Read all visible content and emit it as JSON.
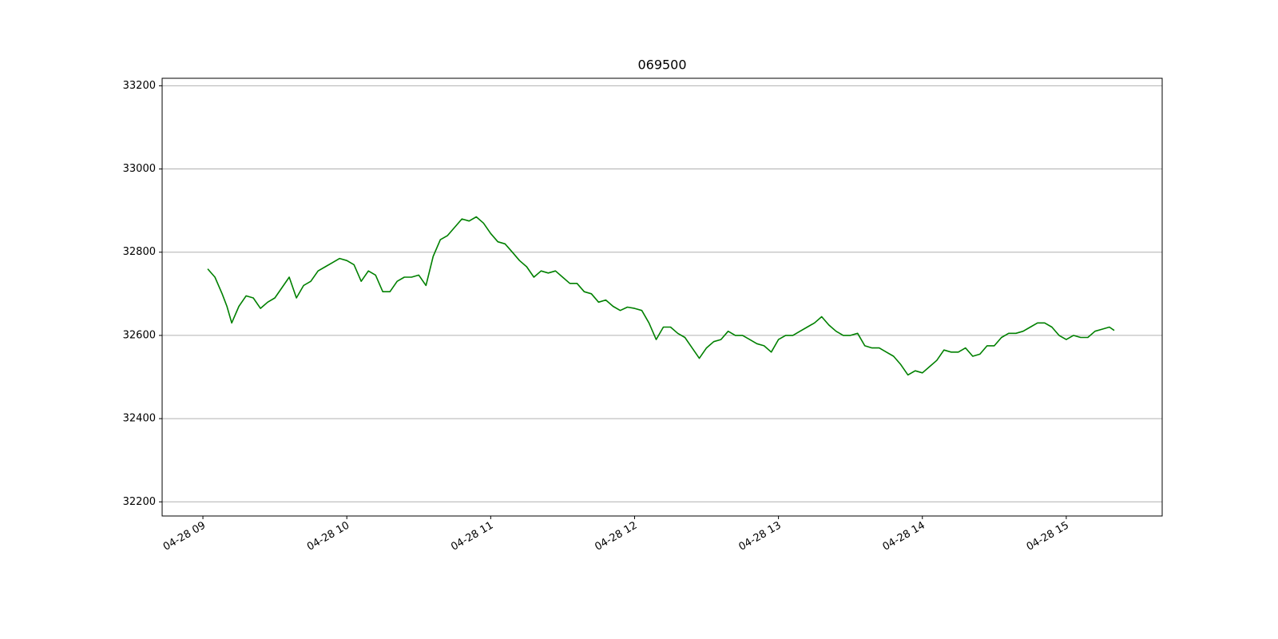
{
  "chart_data": {
    "type": "line",
    "title": "069500",
    "x": [
      "04-28 09:02",
      "04-28 09:05",
      "04-28 09:08",
      "04-28 09:10",
      "04-28 09:12",
      "04-28 09:15",
      "04-28 09:18",
      "04-28 09:21",
      "04-28 09:24",
      "04-28 09:27",
      "04-28 09:30",
      "04-28 09:33",
      "04-28 09:36",
      "04-28 09:39",
      "04-28 09:42",
      "04-28 09:45",
      "04-28 09:48",
      "04-28 09:51",
      "04-28 09:54",
      "04-28 09:57",
      "04-28 10:00",
      "04-28 10:03",
      "04-28 10:06",
      "04-28 10:09",
      "04-28 10:12",
      "04-28 10:15",
      "04-28 10:18",
      "04-28 10:21",
      "04-28 10:24",
      "04-28 10:27",
      "04-28 10:30",
      "04-28 10:33",
      "04-28 10:36",
      "04-28 10:39",
      "04-28 10:42",
      "04-28 10:45",
      "04-28 10:48",
      "04-28 10:51",
      "04-28 10:54",
      "04-28 10:57",
      "04-28 11:00",
      "04-28 11:03",
      "04-28 11:06",
      "04-28 11:09",
      "04-28 11:12",
      "04-28 11:15",
      "04-28 11:18",
      "04-28 11:21",
      "04-28 11:24",
      "04-28 11:27",
      "04-28 11:30",
      "04-28 11:33",
      "04-28 11:36",
      "04-28 11:39",
      "04-28 11:42",
      "04-28 11:45",
      "04-28 11:48",
      "04-28 11:51",
      "04-28 11:54",
      "04-28 11:57",
      "04-28 12:00",
      "04-28 12:03",
      "04-28 12:06",
      "04-28 12:09",
      "04-28 12:12",
      "04-28 12:15",
      "04-28 12:18",
      "04-28 12:21",
      "04-28 12:24",
      "04-28 12:27",
      "04-28 12:30",
      "04-28 12:33",
      "04-28 12:36",
      "04-28 12:39",
      "04-28 12:42",
      "04-28 12:45",
      "04-28 12:48",
      "04-28 12:51",
      "04-28 12:54",
      "04-28 12:57",
      "04-28 13:00",
      "04-28 13:03",
      "04-28 13:06",
      "04-28 13:09",
      "04-28 13:12",
      "04-28 13:15",
      "04-28 13:18",
      "04-28 13:21",
      "04-28 13:24",
      "04-28 13:27",
      "04-28 13:30",
      "04-28 13:33",
      "04-28 13:36",
      "04-28 13:39",
      "04-28 13:42",
      "04-28 13:45",
      "04-28 13:48",
      "04-28 13:51",
      "04-28 13:54",
      "04-28 13:57",
      "04-28 14:00",
      "04-28 14:03",
      "04-28 14:06",
      "04-28 14:09",
      "04-28 14:12",
      "04-28 14:15",
      "04-28 14:18",
      "04-28 14:21",
      "04-28 14:24",
      "04-28 14:27",
      "04-28 14:30",
      "04-28 14:33",
      "04-28 14:36",
      "04-28 14:39",
      "04-28 14:42",
      "04-28 14:45",
      "04-28 14:48",
      "04-28 14:51",
      "04-28 14:54",
      "04-28 14:57",
      "04-28 15:00",
      "04-28 15:03",
      "04-28 15:06",
      "04-28 15:09",
      "04-28 15:12",
      "04-28 15:15",
      "04-28 15:18",
      "04-28 15:20"
    ],
    "series": [
      {
        "color": "#008000",
        "values": [
          32760,
          32740,
          32700,
          32670,
          32630,
          32670,
          32695,
          32690,
          32665,
          32680,
          32690,
          32715,
          32740,
          32690,
          32720,
          32730,
          32755,
          32765,
          32775,
          32785,
          32780,
          32770,
          32730,
          32755,
          32745,
          32705,
          32705,
          32730,
          32740,
          32740,
          32745,
          32720,
          32790,
          32830,
          32840,
          32860,
          32880,
          32875,
          32885,
          32870,
          32845,
          32825,
          32820,
          32800,
          32780,
          32765,
          32740,
          32755,
          32750,
          32755,
          32740,
          32725,
          32725,
          32705,
          32700,
          32680,
          32685,
          32670,
          32660,
          32668,
          32665,
          32660,
          32630,
          32590,
          32620,
          32620,
          32605,
          32595,
          32570,
          32545,
          32570,
          32585,
          32590,
          32610,
          32600,
          32600,
          32590,
          32580,
          32575,
          32560,
          32590,
          32600,
          32600,
          32610,
          32620,
          32630,
          32645,
          32625,
          32610,
          32600,
          32600,
          32605,
          32575,
          32570,
          32570,
          32560,
          32550,
          32530,
          32505,
          32515,
          32510,
          32525,
          32540,
          32565,
          32560,
          32560,
          32570,
          32550,
          32555,
          32575,
          32575,
          32595,
          32605,
          32605,
          32610,
          32620,
          32630,
          32630,
          32620,
          32600,
          32590,
          32600,
          32595,
          32595,
          32610,
          32615,
          32620,
          32612
        ]
      }
    ],
    "xlim": [
      "04-28 08:43",
      "04-28 15:40"
    ],
    "xticks": [
      "04-28 09",
      "04-28 10",
      "04-28 11",
      "04-28 12",
      "04-28 13",
      "04-28 14",
      "04-28 15"
    ],
    "ylim": [
      32166,
      33218
    ],
    "yticks": [
      32200,
      32400,
      32600,
      32800,
      33000,
      33200
    ],
    "grid": "y"
  }
}
